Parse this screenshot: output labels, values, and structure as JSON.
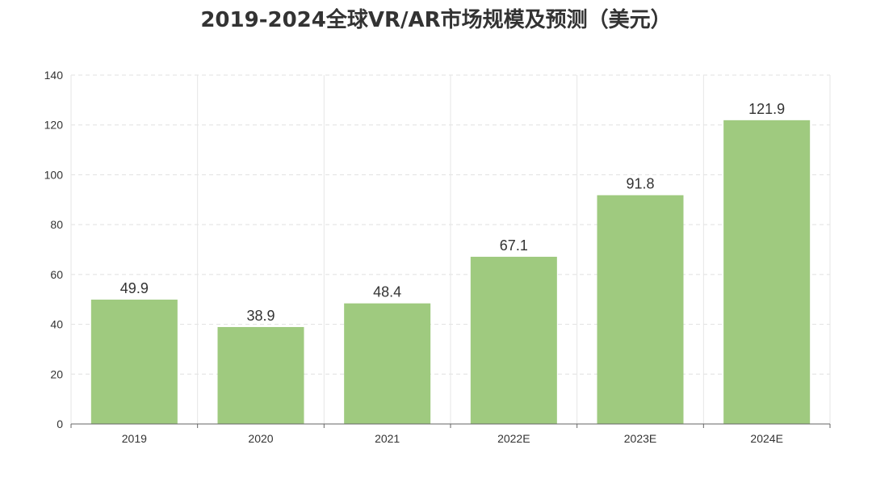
{
  "chart_data": {
    "type": "bar",
    "title": "2019-2024全球VR/AR市场规模及预测（美元）",
    "categories": [
      "2019",
      "2020",
      "2021",
      "2022E",
      "2023E",
      "2024E"
    ],
    "values": [
      49.9,
      38.9,
      48.4,
      67.1,
      91.8,
      121.9
    ],
    "value_labels": [
      "49.9",
      "38.9",
      "48.4",
      "67.1",
      "91.8",
      "121.9"
    ],
    "xlabel": "",
    "ylabel": "",
    "ylim": [
      0,
      140
    ],
    "yticks": [
      "0",
      "20",
      "40",
      "60",
      "80",
      "100",
      "120",
      "140"
    ],
    "grid": true,
    "legend": "none",
    "bar_color": "#9fca7f"
  }
}
